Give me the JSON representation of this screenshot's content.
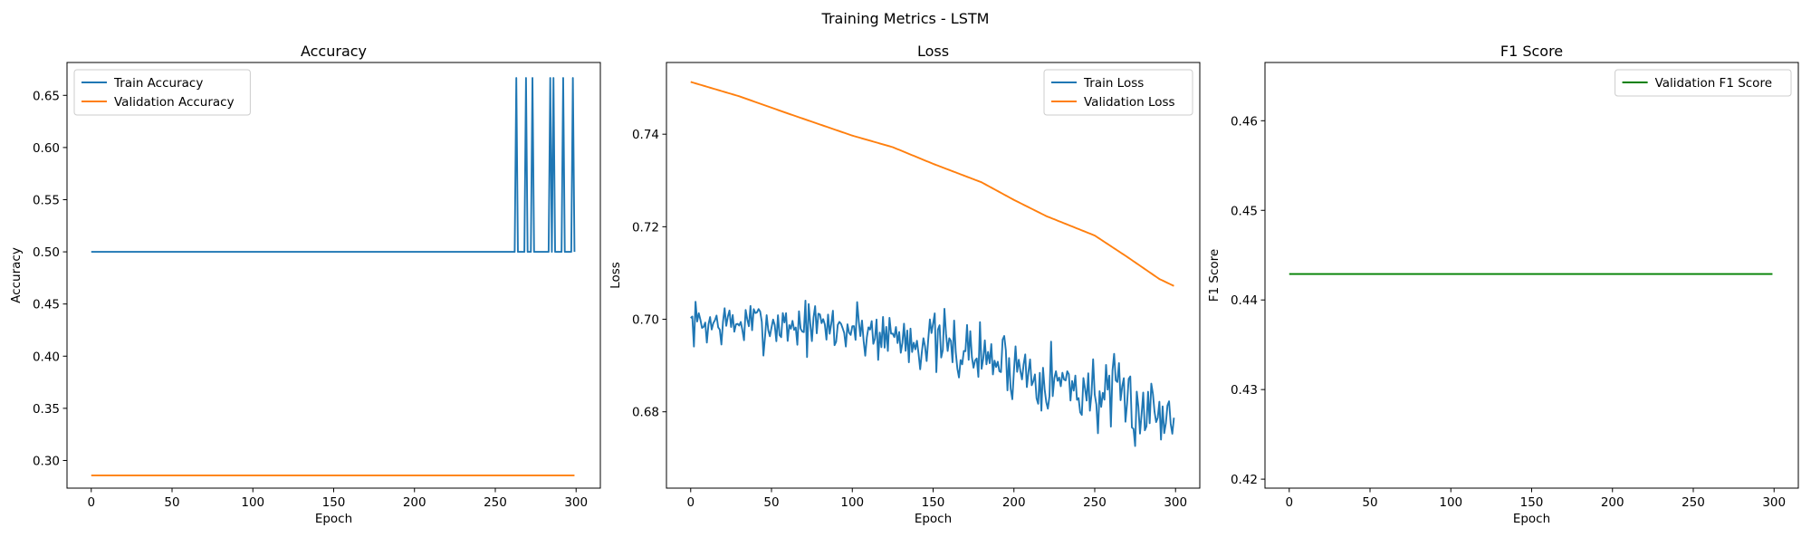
{
  "figure": {
    "title": "Training Metrics - LSTM"
  },
  "chart_data": [
    {
      "type": "line",
      "title": "Accuracy",
      "xlabel": "Epoch",
      "ylabel": "Accuracy",
      "xlim": [
        -15,
        315
      ],
      "ylim": [
        0.2735,
        0.6815
      ],
      "xticks": [
        0,
        50,
        100,
        150,
        200,
        250,
        300
      ],
      "yticks": [
        0.3,
        0.35,
        0.4,
        0.45,
        0.5,
        0.55,
        0.6,
        0.65
      ],
      "tick_decimals": 2,
      "legend_position": "upper-left",
      "grid": false,
      "series": [
        {
          "name": "Train Accuracy",
          "color": "#1f77b4",
          "style": "spikes",
          "base": 0.5,
          "peak": 0.6667,
          "spike_epochs": [
            263,
            269,
            273,
            284,
            286,
            292,
            298
          ],
          "x_range": [
            0,
            299
          ]
        },
        {
          "name": "Validation Accuracy",
          "color": "#ff7f0e",
          "style": "constant",
          "value": 0.2857,
          "x_range": [
            0,
            299
          ]
        }
      ]
    },
    {
      "type": "line",
      "title": "Loss",
      "xlabel": "Epoch",
      "ylabel": "Loss",
      "xlim": [
        -15,
        315
      ],
      "ylim": [
        0.6635,
        0.7555
      ],
      "xticks": [
        0,
        50,
        100,
        150,
        200,
        250,
        300
      ],
      "yticks": [
        0.68,
        0.7,
        0.72,
        0.74
      ],
      "tick_decimals": 2,
      "legend_position": "upper-right",
      "grid": false,
      "series": [
        {
          "name": "Train Loss",
          "color": "#1f77b4",
          "style": "noisy",
          "trend": [
            [
              0,
              0.699
            ],
            [
              50,
              0.699
            ],
            [
              100,
              0.698
            ],
            [
              150,
              0.695
            ],
            [
              200,
              0.69
            ],
            [
              250,
              0.684
            ],
            [
              299,
              0.679
            ]
          ],
          "amplitude": 0.0045,
          "growth": 0.0035,
          "seed": 7,
          "x_range": [
            0,
            299
          ]
        },
        {
          "name": "Validation Loss",
          "color": "#ff7f0e",
          "style": "smooth",
          "points": [
            [
              0,
              0.7513
            ],
            [
              30,
              0.7482
            ],
            [
              60,
              0.7445
            ],
            [
              100,
              0.7397
            ],
            [
              125,
              0.7372
            ],
            [
              150,
              0.7336
            ],
            [
              180,
              0.7296
            ],
            [
              200,
              0.7258
            ],
            [
              220,
              0.7223
            ],
            [
              250,
              0.7181
            ],
            [
              270,
              0.7135
            ],
            [
              290,
              0.7087
            ],
            [
              299,
              0.7072
            ]
          ],
          "x_range": [
            0,
            299
          ]
        }
      ]
    },
    {
      "type": "line",
      "title": "F1 Score",
      "xlabel": "Epoch",
      "ylabel": "F1 Score",
      "xlim": [
        -15,
        315
      ],
      "ylim": [
        0.419,
        0.4665
      ],
      "xticks": [
        0,
        50,
        100,
        150,
        200,
        250,
        300
      ],
      "yticks": [
        0.42,
        0.43,
        0.44,
        0.45,
        0.46
      ],
      "tick_decimals": 2,
      "legend_position": "upper-right",
      "grid": false,
      "series": [
        {
          "name": "Validation F1 Score",
          "color": "#008000",
          "style": "constant",
          "value": 0.4429,
          "x_range": [
            0,
            299
          ]
        }
      ]
    }
  ]
}
